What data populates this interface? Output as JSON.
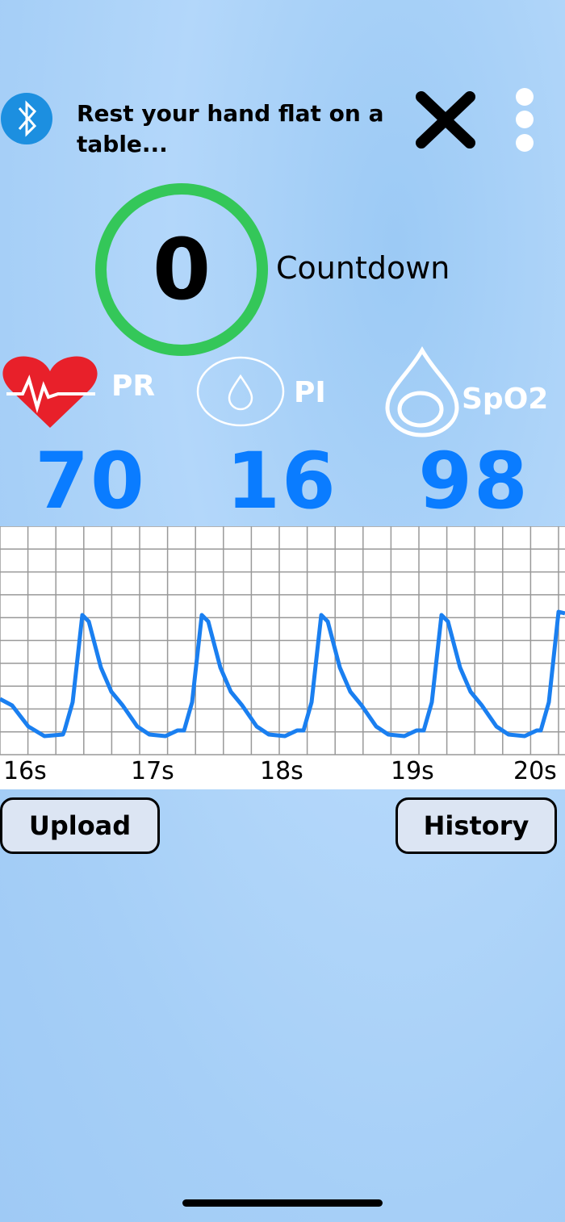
{
  "header": {
    "status": "Rest your hand flat on a table..."
  },
  "countdown": {
    "value": 0,
    "label": "Countdown"
  },
  "metrics": [
    {
      "label": "PR",
      "value": 70
    },
    {
      "label": "PI",
      "value": 16
    },
    {
      "label": "SpO2",
      "value": 98
    }
  ],
  "waveform": {
    "time_labels": [
      "16s",
      "17s",
      "18s",
      "19s",
      "20s"
    ]
  },
  "buttons": {
    "upload": "Upload",
    "history": "History"
  }
}
